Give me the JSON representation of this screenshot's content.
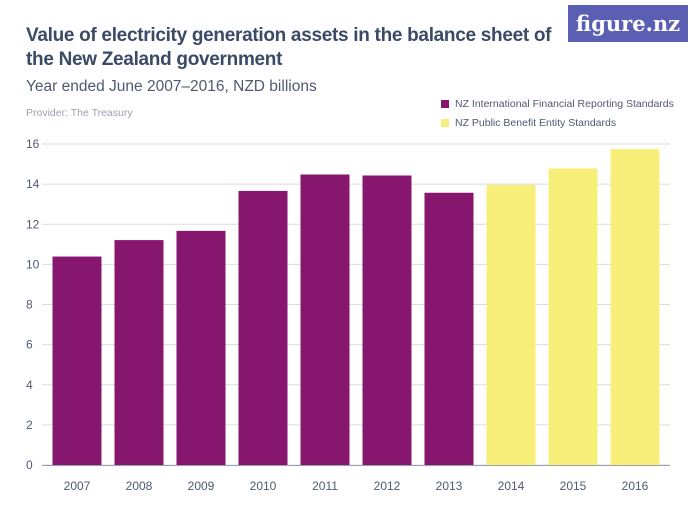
{
  "header": {
    "logo": "figure.nz"
  },
  "chart_data": {
    "type": "bar",
    "title": "Value of electricity generation assets in the balance sheet of the New Zealand government",
    "subtitle": "Year ended June 2007–2016, NZD billions",
    "provider": "Provider: The Treasury",
    "categories": [
      "2007",
      "2008",
      "2009",
      "2010",
      "2011",
      "2012",
      "2013",
      "2014",
      "2015",
      "2016"
    ],
    "values": [
      10.39,
      11.21,
      11.67,
      13.66,
      14.48,
      14.43,
      13.57,
      13.96,
      14.78,
      15.75
    ],
    "series_by_category": [
      0,
      0,
      0,
      0,
      0,
      0,
      0,
      1,
      1,
      1
    ],
    "series": [
      {
        "name": "NZ International Financial Reporting Standards",
        "color": "#86166e"
      },
      {
        "name": "NZ Public Benefit Entity Standards",
        "color": "#f8ef7a"
      }
    ],
    "ylim": [
      0,
      16
    ],
    "yticks": [
      "0",
      "2",
      "4",
      "6",
      "8",
      "10",
      "12",
      "14",
      "16"
    ],
    "grid": true,
    "legend": "top-right"
  }
}
